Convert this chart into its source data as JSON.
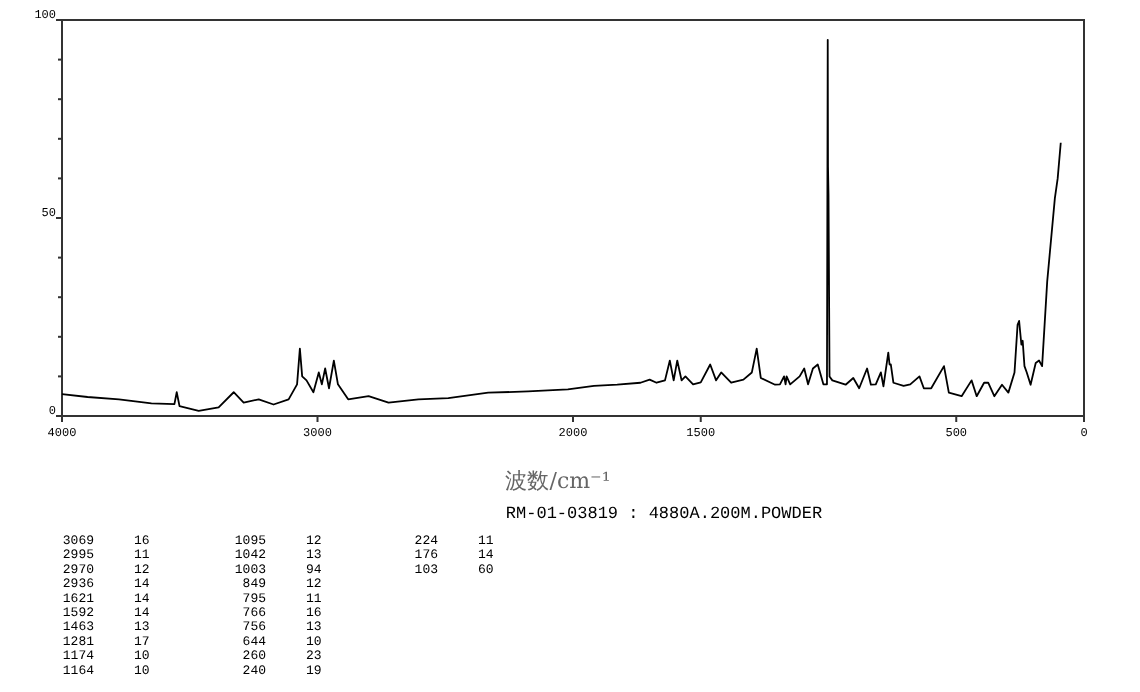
{
  "chart_data": {
    "type": "line",
    "xlabel": "波数/cm⁻¹",
    "xlim": [
      4000,
      0
    ],
    "xticks": [
      4000,
      3000,
      2000,
      1500,
      500,
      0
    ],
    "ylim": [
      0,
      100
    ],
    "yticks": [
      0,
      {
        "value": 10,
        "label": null
      },
      {
        "value": 20,
        "label": null
      },
      {
        "value": 30,
        "label": null
      },
      {
        "value": 40,
        "label": null
      },
      50,
      {
        "value": 60,
        "label": null
      },
      {
        "value": 70,
        "label": null
      },
      {
        "value": 80,
        "label": null
      },
      {
        "value": 90,
        "label": null
      },
      100
    ],
    "grid": false,
    "marker": "none",
    "line_style": "solid",
    "series": [
      {
        "color": "#000000",
        "x": [
          4000,
          3900,
          3777,
          3650,
          3560,
          3551,
          3540,
          3465,
          3387,
          3328,
          3289,
          3230,
          3172,
          3113,
          3080,
          3069,
          3060,
          3043,
          3016,
          2995,
          2983,
          2970,
          2955,
          2936,
          2920,
          2880,
          2800,
          2722,
          2605,
          2488,
          2332,
          2176,
          2020,
          1918,
          1827,
          1736,
          1700,
          1673,
          1640,
          1621,
          1606,
          1592,
          1575,
          1560,
          1530,
          1500,
          1463,
          1440,
          1420,
          1381,
          1333,
          1300,
          1281,
          1265,
          1209,
          1190,
          1174,
          1168,
          1164,
          1150,
          1113,
          1095,
          1080,
          1061,
          1042,
          1020,
          1006,
          1003,
          1002,
          1000,
          996,
          985,
          933,
          903,
          880,
          849,
          834,
          815,
          795,
          785,
          766,
          761,
          756,
          746,
          706,
          680,
          644,
          627,
          598,
          548,
          529,
          479,
          440,
          420,
          391,
          375,
          351,
          321,
          296,
          272,
          260,
          254,
          245,
          240,
          233,
          224,
          209,
          189,
          176,
          164,
          144,
          114,
          103,
          91
        ],
        "values": [
          5.5,
          4.8,
          4.2,
          3.2,
          3,
          6,
          2.5,
          1.3,
          2.2,
          6,
          3.4,
          4.2,
          2.9,
          4.2,
          8,
          17,
          10,
          9,
          6,
          11,
          8,
          12,
          7,
          14,
          8,
          4.2,
          5,
          3.4,
          4.2,
          4.5,
          5.9,
          6.2,
          6.7,
          7.6,
          7.9,
          8.4,
          9.2,
          8.4,
          9,
          14,
          9,
          14,
          9,
          10,
          8,
          8.5,
          13,
          9,
          11,
          8.4,
          9.2,
          11,
          17,
          9.6,
          7.9,
          8,
          10,
          8,
          10,
          8,
          10,
          12,
          8,
          12,
          13,
          8,
          8,
          95,
          63,
          56,
          10,
          9,
          7.9,
          9.6,
          7,
          12,
          7.9,
          8,
          11,
          7.5,
          16,
          13,
          13,
          8.4,
          7.6,
          8,
          10,
          7,
          7,
          12.6,
          5.9,
          5,
          9,
          5,
          8.4,
          8.4,
          5,
          7.9,
          5.9,
          11,
          23,
          24,
          18,
          19,
          12.6,
          11,
          7.9,
          13.4,
          14,
          12.6,
          34,
          55,
          60,
          69
        ]
      }
    ],
    "annotations": [
      "RM-01-03819 : 4880A.200M.POWDER",
      "3069 16",
      "2995 11",
      "2970 12",
      "2936 14",
      "1621 14",
      "1592 14",
      "1463 13",
      "1281 17",
      "1174 10",
      "1164 10",
      "1095 12",
      "1042 13",
      "1003 94",
      "849 12",
      "795 11",
      "766 16",
      "756 13",
      "644 10",
      "260 23",
      "240 19",
      "224 11",
      "176 14",
      "103 60"
    ]
  }
}
